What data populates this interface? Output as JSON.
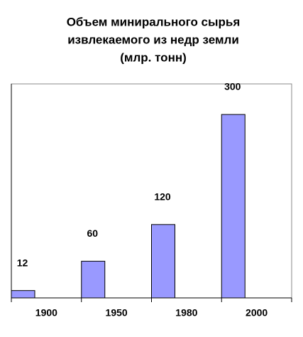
{
  "chart_data": {
    "type": "bar",
    "title": [
      "Объем минирального сырья",
      "извлекаемого из недр земли",
      "(млр. тонн)"
    ],
    "categories": [
      "1900",
      "1950",
      "1980",
      "2000"
    ],
    "values": [
      12,
      60,
      120,
      300
    ],
    "color": "#9999ff",
    "ylim": [
      0,
      350
    ]
  }
}
